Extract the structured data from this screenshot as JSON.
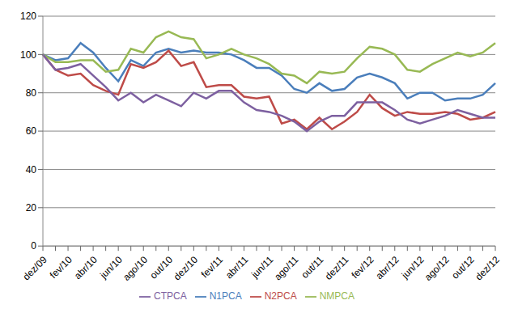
{
  "chart_data": {
    "type": "line",
    "categories": [
      "dez/09",
      null,
      "fev/10",
      null,
      "abr/10",
      null,
      "jun/10",
      null,
      "ago/10",
      null,
      "out/10",
      null,
      "dez/10",
      null,
      "fev/11",
      null,
      "abr/11",
      null,
      "jun/11",
      null,
      "ago/11",
      null,
      "out/11",
      null,
      "dez/11",
      null,
      "fev/12",
      null,
      "abr/12",
      null,
      "jun/12",
      null,
      "ago/12",
      null,
      "out/12",
      null,
      "dez/12"
    ],
    "series": [
      {
        "name": "N1PCA",
        "color": "#4a7ebb",
        "values": [
          100,
          97,
          98,
          106,
          101,
          93,
          86,
          97,
          94,
          101,
          103,
          101,
          102,
          101,
          101,
          100,
          97,
          93,
          93,
          89,
          82,
          80,
          85,
          81,
          82,
          88,
          90,
          88,
          85,
          77,
          80,
          80,
          76,
          77,
          77,
          79,
          85
        ]
      },
      {
        "name": "N2PCA",
        "color": "#be4b48",
        "values": [
          100,
          92,
          89,
          90,
          84,
          81,
          79,
          95,
          93,
          96,
          102,
          94,
          96,
          83,
          84,
          84,
          78,
          77,
          78,
          64,
          66,
          61,
          67,
          61,
          65,
          70,
          79,
          72,
          68,
          70,
          69,
          69,
          70,
          69,
          66,
          67,
          70
        ]
      },
      {
        "name": "NMPCA",
        "color": "#98b954",
        "values": [
          100,
          96,
          96,
          97,
          97,
          91,
          92,
          103,
          101,
          109,
          112,
          109,
          108,
          98,
          100,
          103,
          100,
          98,
          95,
          90,
          89,
          85,
          91,
          90,
          91,
          98,
          104,
          103,
          100,
          92,
          91,
          95,
          98,
          101,
          99,
          101,
          106
        ]
      },
      {
        "name": "CTPCA",
        "color": "#7d60a0",
        "values": [
          100,
          92,
          93,
          95,
          89,
          83,
          76,
          80,
          75,
          79,
          76,
          73,
          80,
          77,
          81,
          81,
          75,
          71,
          70,
          68,
          65,
          60,
          65,
          68,
          68,
          75,
          75,
          75,
          71,
          66,
          64,
          66,
          68,
          71,
          69,
          67,
          67
        ]
      }
    ],
    "ylim": [
      0,
      120
    ],
    "yticks": [
      0,
      20,
      40,
      60,
      80,
      100,
      120
    ],
    "grid": true,
    "legend": "bottom"
  }
}
